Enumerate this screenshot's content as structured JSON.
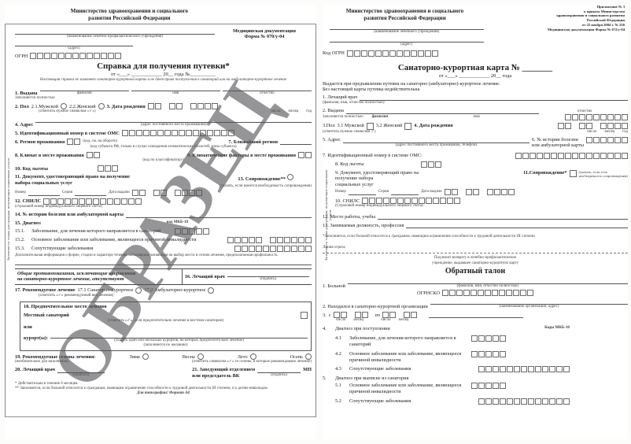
{
  "watermark": "ОБРАЗЕЦ",
  "left": {
    "ministry_l1": "Министерство здравоохранения и социального",
    "ministry_l2": "развития Российской Федерации",
    "org_caption": "(наименование лечебно-профилактического учреждения)",
    "addr_caption": "(адрес)",
    "ogrn": "ОГРН",
    "med_doc_l1": "Медицинская документация",
    "med_doc_l2": "Форма № 070/у-04",
    "title": "Справка для получения путевки*",
    "date_line": "от «___» ____________ 20__ года   №__________",
    "subtitle": "Настоящая справка не заменяет санаторно-курортной карты и не дает права поступления в санаторий или на амбулаторно-курортное лечение",
    "side_note": "Заполняется только для граждан, получающих социальные услуги",
    "f1": "1. Выдана",
    "f1n": "Заполняется полностью",
    "f1c1": "фамилия",
    "f1c2": "имя",
    "f1c3": "отчество",
    "f2": "2. Пол",
    "f2a": "2.1.Мужской",
    "f2b": "2.2.Женский",
    "f2n": "(отметить нужное символом «✓»)",
    "f3": "3. Дата рождения",
    "dd": "число",
    "mm": "месяц",
    "yy": "год",
    "f4": "4. Адрес",
    "f4c": "(адрес постоянного места проживания)",
    "f5": "5. Идентификационный номер в системе ОМС",
    "f6": "6. Регион проживания",
    "f6c": "(код, см. на обороте)",
    "f7": "7. Ближайший регион",
    "f7c": "(код субъекта РФ, только в случае совпадения климатических областей, зоны субъекта)",
    "f8": "8. Климат в месте проживания",
    "f9": "9. Климатические факторы в месте проживания",
    "f9c": "(код по классификатору)",
    "f10": "10. Код льготы",
    "f11": "11. Документ, удостоверяющий  право на получение набора социальных услуг",
    "num": "Номер",
    "ser": "Серия",
    "dv": "Дата выдачи",
    "f13": "13. Сопровождение**",
    "f13c": "(указать, если имеется необходимость сопровождения)",
    "f12": "12. СНИЛС",
    "f12c": "(страховой номер индивидуального лицевого счета)",
    "f14": "14. № истории болезни или амбулаторной карты",
    "f15": "15. Диагноз",
    "mkb": "код МКБ-10",
    "f151n": "15.1.",
    "f151": "Заболевание, для лечения которого направляется в санаторий",
    "f152n": "15.2.",
    "f152": "Основное заболевание или заболевание, являющееся причиной инвалидности",
    "f153n": "15.3.",
    "f153": "Сопутствующие заболевания",
    "extra": "Дополнительная информация о форме, стадии и характере течения заболевания, влияющая на выбор места и сезона лечения, предполагаемая профильность",
    "contra_l1": "Общие противопоказания, исключающие направление",
    "contra_l2": "на санаторно-курортное лечение, отсутствуют",
    "f16": "16. Лечащий врач",
    "sig": "(подпись)",
    "f17": "17. Рекомендуемое лечение",
    "f171": "17.1 Санаторно-курортное",
    "f172": "17.2 Амбулаторно-курортное",
    "f17n": "(отметить «✓» рекомендуемый вид лечения)",
    "f18": "18. Предпочтительное  место лечения",
    "f18a": "Местный санаторий",
    "f18or": "или",
    "f18b": "курорт(ы):",
    "f18c1": "(отметить «✓», если предпочтительно лечение в местном санатории)",
    "f18c2": "(указать один или несколько курортов, на которых предпочтительно лечение)",
    "f18c3": "(заполняется по желанию)",
    "f19": "19. Рекомендуемые сезоны лечения:",
    "f19n": "(необязательно для заполнения)",
    "s1": "Зима",
    "s2": "Весна",
    "s3": "Лето",
    "s4": "Осень",
    "f19n2": "(отметить символом «✓» те сезоны, в которые рекомендовано лечение)",
    "f20": "20. Лечащий врач",
    "f21": "21. Заведующий отделением",
    "f21b": "или председатель ВК",
    "mp": "МП",
    "fn1": "* Действительна в течение 6 месяцев.",
    "fn2": "** Заполняется, если больной относится к гражданам, имеющим ограничение способности к трудовой деятельности III степени, и к детям-инвалидам.",
    "print_note": "Для типографии! Формат А4"
  },
  "right": {
    "ministry_l1": "Министерство здравоохранения и социального",
    "ministry_l2": "развития Российской Федерации",
    "org_caption": "(наименование лечебного учреждения)",
    "addr_caption": "(адрес)",
    "a1": "Приложение № 3",
    "a2": "к приказу Министерства",
    "a3": "здравоохранения и социального развития",
    "a4": "Российской Федерации",
    "a5": "от 22 ноября 2004 г. № 256",
    "a6": "Медицинская документация Форма № 072/у-04",
    "ogrn": "Код ОГРН",
    "title": "Санаторно-курортная карта №  _______",
    "date_line": "от «___» ____________ 20__ года",
    "note1": "Выдается при предъявлении путевки на санаторно (амбулаторно)-курортное лечение.",
    "note2": "Без настоящей карты путевка недействительна",
    "f1": "1. Лечащий врач",
    "f1c": "(фамилия, имя, отчество полностью)",
    "f2": "2. Выдана",
    "f2n": "Заполняется полностью-",
    "c_fam": "фамилия",
    "c_im": "имя",
    "c_ot": "отчество",
    "f3": "3.Пол",
    "f3a": "3.1 Мужской",
    "f3b": "3.2 Женский",
    "f3n": "(отметить нужное символом ✓)",
    "f4": "4. Дата рождения",
    "dd": "число",
    "mm": "месяц",
    "yy": "год",
    "f5": "5. Адрес",
    "f5c": "(адрес постоянного места проживания, телефон)",
    "f6_l1": "6. № истории болезни",
    "f6_l2": "или амбулаторной карты",
    "f7": "7. Идентификационный номер в системе ОМС:",
    "side_note": "Заполняется только для граждан, получающих социальные услуги",
    "f8": "8. Код льготы",
    "f9": "9. Документ, удостоверяющий право на",
    "f9b": "получение набора",
    "f9c": "социальных услуг",
    "num": "Номер",
    "ser": "Серия",
    "dv": "Дата выдачи",
    "f11": "11.Сопровождение*",
    "f11c_l1": "(указать, если есть",
    "f11c_l2": "необходимость сопровождения)",
    "f10": "10. СНИЛС",
    "f10c": "(Страховой номер индивидуального лицевого счета)",
    "f12": "12. Место работы, учебы",
    "f13": "13. Занимаемая должность, профессия",
    "fn": "*Заполняется, если больной относится к гражданам, имеющим ограничение способности к трудовой деятельности III степени",
    "cut": "Линия отреза",
    "ret_l1": "Подлежит возврату в лечебно-профилактическое",
    "ret_l2": "учреждение, выдавшее санаторно-курортную карту",
    "talon": "Обратный талон",
    "t1": "1. Больной",
    "t1c": "(фамилия, имя, отчество полностью)",
    "ogrnsko": "ОГРНСКО",
    "t2": "2. Находился в санаторно-курортной организации",
    "t2c": "(наименование организации, адрес)",
    "t3": "3.",
    "t3s": "с",
    "t3po": "по",
    "t4": "4.",
    "t4t": "Диагноз при поступлении",
    "mkb": "Коды МКБ-10",
    "t41n": "4.1",
    "t41": "Заболевание, для лечения которого направляется в санаторий",
    "t42n": "4.2",
    "t42": "Основное заболевание или заболевание, являющееся причиной инвалидности",
    "t43n": "4.3",
    "t43": "Сопутствующие заболевания",
    "t5n": "5.",
    "t5": "Диагноз при выписке из санатория",
    "t51n": "5.1",
    "t51": "Основное заболевание или заболевание, являющееся причиной инвалидности",
    "t52n": "5.2",
    "t52": "Сопутствующие заболевания"
  }
}
